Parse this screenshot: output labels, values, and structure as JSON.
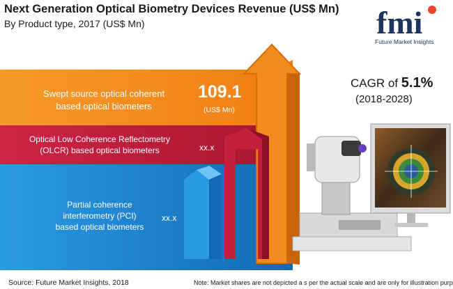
{
  "header": {
    "title": "Next Generation Optical Biometry Devices Revenue (US$ Mn)",
    "subtitle": "By Product type, 2017 (US$ Mn)"
  },
  "logo": {
    "letters": "fmi",
    "name": "Future Market Insights"
  },
  "cagr": {
    "prefix": "CAGR of",
    "value": "5.1%",
    "period": "(2018-2028)"
  },
  "chart_data": {
    "type": "bar",
    "categories": [
      "Swept source optical coherent based optical biometers",
      "Optical Low Coherence Reflectometry (OLCR) based optical biometers",
      "Partial coherence interferometry (PCI) based optical biometers"
    ],
    "values": [
      109.1,
      null,
      null
    ],
    "value_labels": [
      "109.1",
      "xx.x",
      "xx.x"
    ],
    "unit_label": "(US$ Mn)",
    "colors": [
      "#f28b1e",
      "#c41f3c",
      "#1d8ad4"
    ]
  },
  "bands": [
    {
      "line1": "Swept source optical coherent",
      "line2": "based optical biometers",
      "line3": "",
      "color": "#f28b1e"
    },
    {
      "line1": "Optical Low Coherence Reflectometry",
      "line2": "(OLCR) based optical biometers",
      "line3": "",
      "color": "#c41f3c"
    },
    {
      "line1": "Partial coherence",
      "line2": "interferometry (PCI)",
      "line3": "based optical biometers",
      "color": "#1d8ad4"
    }
  ],
  "footer": {
    "source": "Source: Future Market Insights, 2018",
    "note": "Note: Market shares are not depicted a s per the actual scale and are only for illustration purposes."
  }
}
